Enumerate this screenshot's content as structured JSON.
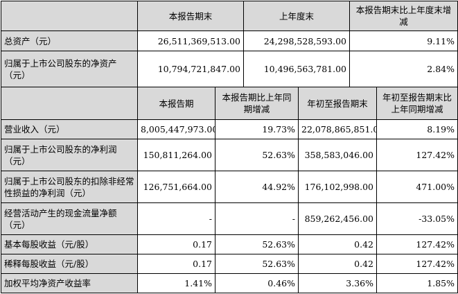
{
  "balance": {
    "headers": [
      "",
      "本报告期末",
      "上年度末",
      "本报告期末比上年度末增减"
    ],
    "rows": [
      {
        "label": "总资产（元）",
        "current": "26,511,369,513.00",
        "prior": "24,298,528,593.00",
        "change": "9.11%"
      },
      {
        "label": "归属于上市公司股东的净资产（元）",
        "current": "10,794,721,847.00",
        "prior": "10,496,563,781.00",
        "change": "2.84%"
      }
    ]
  },
  "income": {
    "headers": [
      "",
      "本报告期",
      "本报告期比上年同期增减",
      "年初至报告期末",
      "年初至报告期末比上年同期增减"
    ],
    "rows": [
      {
        "label": "营业收入（元）",
        "c1": "8,005,447,973.00",
        "c2": "19.73%",
        "c3": "22,078,865,851.00",
        "c4": "8.19%"
      },
      {
        "label": "归属于上市公司股东的净利润（元）",
        "c1": "150,811,264.00",
        "c2": "52.63%",
        "c3": "358,583,046.00",
        "c4": "127.42%"
      },
      {
        "label": "归属于上市公司股东的扣除非经常性损益的净利润（元）",
        "c1": "126,751,664.00",
        "c2": "44.92%",
        "c3": "176,102,998.00",
        "c4": "471.00%"
      },
      {
        "label": "经营活动产生的现金流量净额（元）",
        "c1": "-",
        "c2": "-",
        "c3": "859,262,456.00",
        "c4": "-33.05%"
      },
      {
        "label": "基本每股收益（元/股）",
        "c1": "0.17",
        "c2": "52.63%",
        "c3": "0.42",
        "c4": "127.42%"
      },
      {
        "label": "稀释每股收益（元/股）",
        "c1": "0.17",
        "c2": "52.63%",
        "c3": "0.42",
        "c4": "127.42%"
      },
      {
        "label": "加权平均净资产收益率",
        "c1": "1.41%",
        "c2": "0.46%",
        "c3": "3.36%",
        "c4": "1.85%"
      }
    ]
  }
}
